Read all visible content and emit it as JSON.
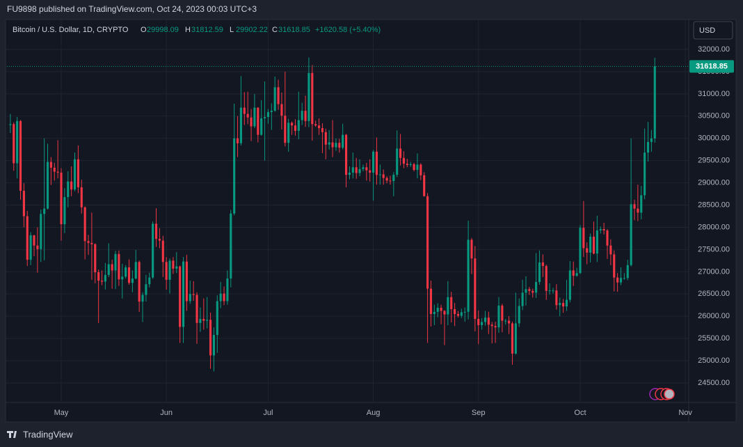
{
  "header": "FU9898 published on TradingView.com, Oct 24, 2023 00:03 UTC+3",
  "currency": "USD",
  "footer": "TradingView",
  "chart_data": {
    "type": "candlestick",
    "title": "Bitcoin / U.S. Dollar, 1D, CRYPTO",
    "legend_labels": [
      "O",
      "H",
      "L",
      "C"
    ],
    "change": "+1620.58 (+5.40%)",
    "up_color": "#089981",
    "down_color": "#f23645",
    "grid": true,
    "xlim": [
      -1,
      200
    ],
    "xticks": [
      {
        "value": 15,
        "label": "May"
      },
      {
        "value": 46,
        "label": "Jun"
      },
      {
        "value": 76,
        "label": "Jul"
      },
      {
        "value": 107,
        "label": "Aug"
      },
      {
        "value": 138,
        "label": "Sep"
      },
      {
        "value": 168,
        "label": "Oct"
      },
      {
        "value": 199,
        "label": "Nov"
      }
    ],
    "ylim": [
      24062,
      32673
    ],
    "yticks": [
      {
        "value": 24500,
        "label": "24500.00"
      },
      {
        "value": 25000,
        "label": "25000.00"
      },
      {
        "value": 25500,
        "label": "25500.00"
      },
      {
        "value": 26000,
        "label": "26000.00"
      },
      {
        "value": 26500,
        "label": "26500.00"
      },
      {
        "value": 27000,
        "label": "27000.00"
      },
      {
        "value": 27500,
        "label": "27500.00"
      },
      {
        "value": 28000,
        "label": "28000.00"
      },
      {
        "value": 28500,
        "label": "28500.00"
      },
      {
        "value": 29000,
        "label": "29000.00"
      },
      {
        "value": 29500,
        "label": "29500.00"
      },
      {
        "value": 30000,
        "label": "30000.00"
      },
      {
        "value": 30500,
        "label": "30500.00"
      },
      {
        "value": 31000,
        "label": "31000.00"
      },
      {
        "value": 31500,
        "label": "31500.00"
      },
      {
        "value": 32000,
        "label": "32000.00"
      }
    ],
    "open": [
      30300,
      30320,
      29440,
      30390,
      28820,
      28250,
      27270,
      27820,
      27590,
      27510,
      28300,
      28420,
      29470,
      29340,
      29250,
      29230,
      28070,
      28680,
      29030,
      28850,
      29530,
      28900,
      28450,
      27690,
      27650,
      27620,
      26990,
      26800,
      26780,
      26930,
      27170,
      27030,
      27400,
      26830,
      26890,
      27100,
      26750,
      26850,
      27220,
      26330,
      26480,
      26720,
      26870,
      28080,
      27740,
      27700,
      27220,
      26820,
      27250,
      27070,
      27120,
      25760,
      27230,
      26340,
      26500,
      26480,
      25850,
      25940,
      25900,
      25920,
      25120,
      25580,
      26340,
      26510,
      26340,
      26850,
      28310,
      30000,
      29890,
      30690,
      30550,
      30470,
      30270,
      30690,
      30080,
      30450,
      30480,
      30590,
      30620,
      31150,
      30770,
      30510,
      29900,
      30350,
      30290,
      30170,
      30410,
      30620,
      30390,
      31470,
      30320,
      30290,
      30230,
      30140,
      29860,
      29910,
      29800,
      29900,
      29790,
      30080,
      29180,
      29230,
      29350,
      29220,
      29310,
      29350,
      29280,
      29230,
      29700,
      29180,
      29190,
      29110,
      29050,
      29040,
      29180,
      29770,
      29560,
      29430,
      29400,
      29420,
      29290,
      29410,
      29170,
      28700,
      26620,
      26050,
      26100,
      26190,
      26120,
      26040,
      26430,
      26160,
      26050,
      26010,
      26090,
      26100,
      27720,
      27300,
      25940,
      25800,
      25870,
      25970,
      25810,
      25780,
      25750,
      26240,
      25900,
      25900,
      25840,
      25160,
      25840,
      26230,
      26530,
      26610,
      26570,
      26530,
      26770,
      27210,
      27130,
      26570,
      26580,
      26580,
      26250,
      26300,
      26220,
      26370,
      27030,
      26910,
      26970,
      27990,
      27530,
      27430,
      27790,
      27410,
      27930,
      27960,
      27930,
      27590,
      27390,
      26870,
      26760,
      26860,
      26860,
      27150,
      28520,
      28420,
      28330,
      28720,
      29680,
      29920,
      29998.09
    ],
    "high": [
      30550,
      30360,
      30480,
      30410,
      28990,
      28370,
      27890,
      27830,
      28000,
      28400,
      30000,
      29880,
      29580,
      29450,
      29960,
      29330,
      28880,
      29260,
      29370,
      29680,
      29840,
      29070,
      28470,
      27830,
      28330,
      27640,
      27050,
      27030,
      27200,
      27640,
      27270,
      27470,
      27480,
      27180,
      27150,
      27280,
      27030,
      27490,
      27250,
      26540,
      26930,
      26980,
      28130,
      28430,
      27980,
      27810,
      27330,
      27300,
      27330,
      27440,
      27140,
      27330,
      27380,
      26800,
      26790,
      26540,
      26200,
      26400,
      26430,
      26080,
      25750,
      26470,
      26770,
      26670,
      27030,
      28390,
      30780,
      30500,
      31400,
      31040,
      31050,
      30660,
      31000,
      30700,
      30860,
      31280,
      30660,
      30790,
      31390,
      31320,
      31030,
      31500,
      30440,
      30380,
      30430,
      31050,
      30800,
      30960,
      31820,
      31650,
      30400,
      30450,
      30340,
      30220,
      30190,
      30410,
      30000,
      29990,
      30330,
      30100,
      29370,
      29680,
      29560,
      29530,
      29410,
      29450,
      29530,
      29740,
      30020,
      29410,
      29300,
      29150,
      29160,
      29240,
      30180,
      30100,
      29710,
      29540,
      29470,
      29450,
      29660,
      29440,
      29240,
      28770,
      26800,
      26260,
      26290,
      26260,
      26140,
      26790,
      26550,
      26300,
      26120,
      26170,
      26200,
      28150,
      27760,
      27580,
      26130,
      25960,
      26120,
      26100,
      25870,
      25880,
      26430,
      26280,
      25940,
      26000,
      25880,
      26530,
      26400,
      26820,
      26900,
      26660,
      26620,
      27420,
      27480,
      27390,
      27160,
      26740,
      26640,
      26720,
      26420,
      26390,
      26820,
      27240,
      27230,
      27090,
      28050,
      28590,
      27660,
      27860,
      28130,
      28260,
      28020,
      28100,
      27960,
      27730,
      27480,
      26970,
      27100,
      26970,
      27270,
      30000,
      28620,
      28960,
      28930,
      30220,
      30370,
      30190,
      31812.59
    ],
    "low": [
      30120,
      29270,
      29100,
      28620,
      28000,
      27130,
      27150,
      27350,
      26980,
      27220,
      27260,
      28400,
      28950,
      29050,
      29100,
      27700,
      27870,
      28450,
      28700,
      28810,
      28770,
      28310,
      27280,
      27380,
      26820,
      26740,
      25850,
      26700,
      26600,
      26880,
      26620,
      26610,
      26680,
      26400,
      26850,
      26710,
      26540,
      26830,
      26100,
      25870,
      26330,
      26650,
      26840,
      27560,
      27530,
      26880,
      26600,
      26510,
      26950,
      26970,
      25400,
      25400,
      26120,
      26280,
      26350,
      25380,
      25650,
      25700,
      25730,
      24820,
      24760,
      25180,
      26180,
      26250,
      26260,
      26650,
      28270,
      29580,
      29840,
      30300,
      30320,
      29940,
      30230,
      29910,
      30060,
      29500,
      30330,
      30190,
      30600,
      30640,
      30200,
      29820,
      29700,
      30080,
      30060,
      29980,
      30300,
      30260,
      30250,
      29950,
      30260,
      30080,
      29670,
      29530,
      29750,
      29580,
      29720,
      29680,
      29750,
      28900,
      29080,
      29100,
      29090,
      29150,
      29260,
      29050,
      29030,
      28600,
      28960,
      28960,
      28960,
      28990,
      28960,
      28700,
      29130,
      29390,
      29330,
      29350,
      29360,
      29260,
      29100,
      29060,
      28690,
      25400,
      25770,
      25800,
      25980,
      25820,
      25350,
      25800,
      25860,
      25780,
      25970,
      25960,
      25880,
      25930,
      26950,
      25660,
      25370,
      25700,
      25790,
      25600,
      25390,
      25400,
      25630,
      25640,
      25810,
      25600,
      24910,
      25140,
      25760,
      26140,
      26240,
      26480,
      26420,
      26410,
      26710,
      26880,
      26370,
      26490,
      26510,
      26150,
      26000,
      26080,
      26120,
      26310,
      26680,
      26890,
      26950,
      27330,
      27170,
      27210,
      27390,
      27220,
      27860,
      27840,
      27290,
      27150,
      26560,
      26550,
      26700,
      26820,
      26810,
      27120,
      28160,
      28140,
      28180,
      28630,
      29480,
      29700,
      29902.22
    ],
    "close": [
      30320,
      29440,
      30390,
      28820,
      28250,
      27270,
      27820,
      27590,
      27510,
      28300,
      28420,
      29470,
      29340,
      29250,
      29230,
      28070,
      28680,
      29030,
      28850,
      29530,
      28900,
      28450,
      27690,
      27650,
      27620,
      26990,
      26800,
      26780,
      26930,
      27170,
      27030,
      27400,
      26830,
      26890,
      27100,
      26750,
      26850,
      27220,
      26330,
      26480,
      26720,
      26870,
      28080,
      27740,
      27700,
      27220,
      26820,
      27250,
      27070,
      27120,
      25760,
      27230,
      26340,
      26500,
      26480,
      25850,
      25940,
      25900,
      25920,
      25120,
      25580,
      26340,
      26510,
      26340,
      26850,
      28310,
      30000,
      29890,
      30690,
      30550,
      30470,
      30270,
      30690,
      30080,
      30450,
      30480,
      30590,
      30620,
      31150,
      30770,
      30510,
      29900,
      30350,
      30290,
      30170,
      30410,
      30620,
      30390,
      31470,
      30320,
      30290,
      30230,
      30140,
      29860,
      29910,
      29800,
      29900,
      29790,
      30080,
      29180,
      29230,
      29350,
      29220,
      29310,
      29350,
      29280,
      29230,
      29700,
      29180,
      29190,
      29110,
      29050,
      29040,
      29180,
      29770,
      29560,
      29430,
      29400,
      29420,
      29290,
      29410,
      29170,
      28700,
      26620,
      26050,
      26100,
      26190,
      26120,
      26040,
      26430,
      26160,
      26050,
      26010,
      26090,
      26100,
      27720,
      27300,
      25940,
      25800,
      25870,
      25970,
      25810,
      25780,
      25750,
      26240,
      25900,
      25900,
      25840,
      25160,
      25840,
      26230,
      26530,
      26610,
      26570,
      26530,
      26770,
      27210,
      27130,
      26570,
      26580,
      26580,
      26250,
      26300,
      26220,
      26370,
      27030,
      26910,
      26970,
      27990,
      27530,
      27430,
      27790,
      27410,
      27930,
      27960,
      27930,
      27590,
      27390,
      26870,
      26760,
      26860,
      26860,
      27150,
      28520,
      28420,
      28330,
      28720,
      29680,
      29920,
      29998.09,
      31618.85
    ]
  }
}
